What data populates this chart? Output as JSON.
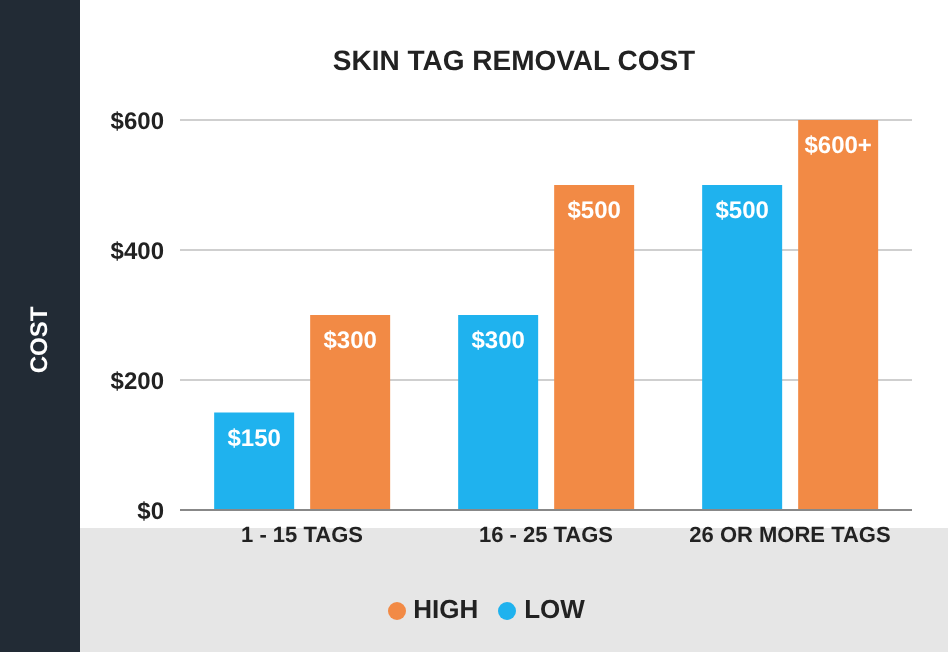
{
  "chart_data": {
    "type": "bar",
    "title": "SKIN TAG REMOVAL COST",
    "ylabel": "COST",
    "categories": [
      "1 - 15 TAGS",
      "16 - 25 TAGS",
      "26 OR MORE TAGS"
    ],
    "series": [
      {
        "name": "LOW",
        "color": "#1fb2ee",
        "values": [
          150,
          300,
          500
        ],
        "value_labels": [
          "$150",
          "$300",
          "$500"
        ]
      },
      {
        "name": "HIGH",
        "color": "#f28a45",
        "values": [
          300,
          500,
          600
        ],
        "value_labels": [
          "$300",
          "$500",
          "$600+"
        ]
      }
    ],
    "ylim": [
      0,
      600
    ],
    "yticks": [
      {
        "value": 0,
        "label": "$0"
      },
      {
        "value": 200,
        "label": "$200"
      },
      {
        "value": 400,
        "label": "$400"
      },
      {
        "value": 600,
        "label": "$600"
      }
    ],
    "grid": "y",
    "legend": "bottom"
  }
}
